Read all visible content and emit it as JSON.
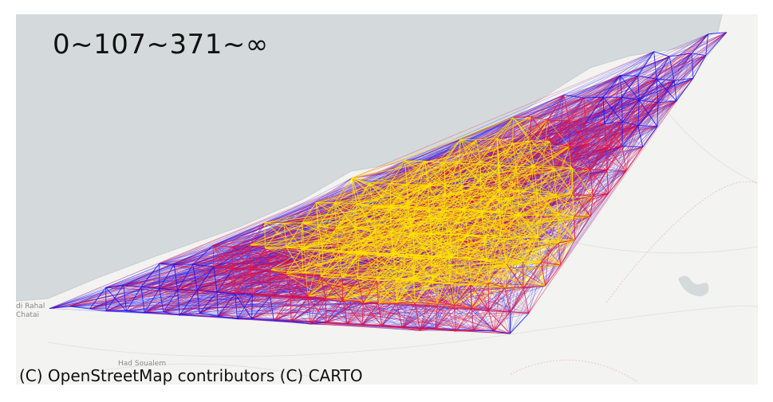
{
  "legend": {
    "breaks_label": "0~107~371~∞"
  },
  "attribution": "(C) OpenStreetMap contributors (C) CARTO",
  "places": [
    {
      "name": "di Rahal"
    },
    {
      "name": "Chatai"
    },
    {
      "name": "Had Soualem"
    }
  ],
  "colors": {
    "sea": "#d4dadc",
    "land": "#f3f3f1",
    "low": "#1010ff",
    "mid": "#e8143c",
    "high": "#ffe600"
  },
  "map_type": "flow-map-carto-light"
}
